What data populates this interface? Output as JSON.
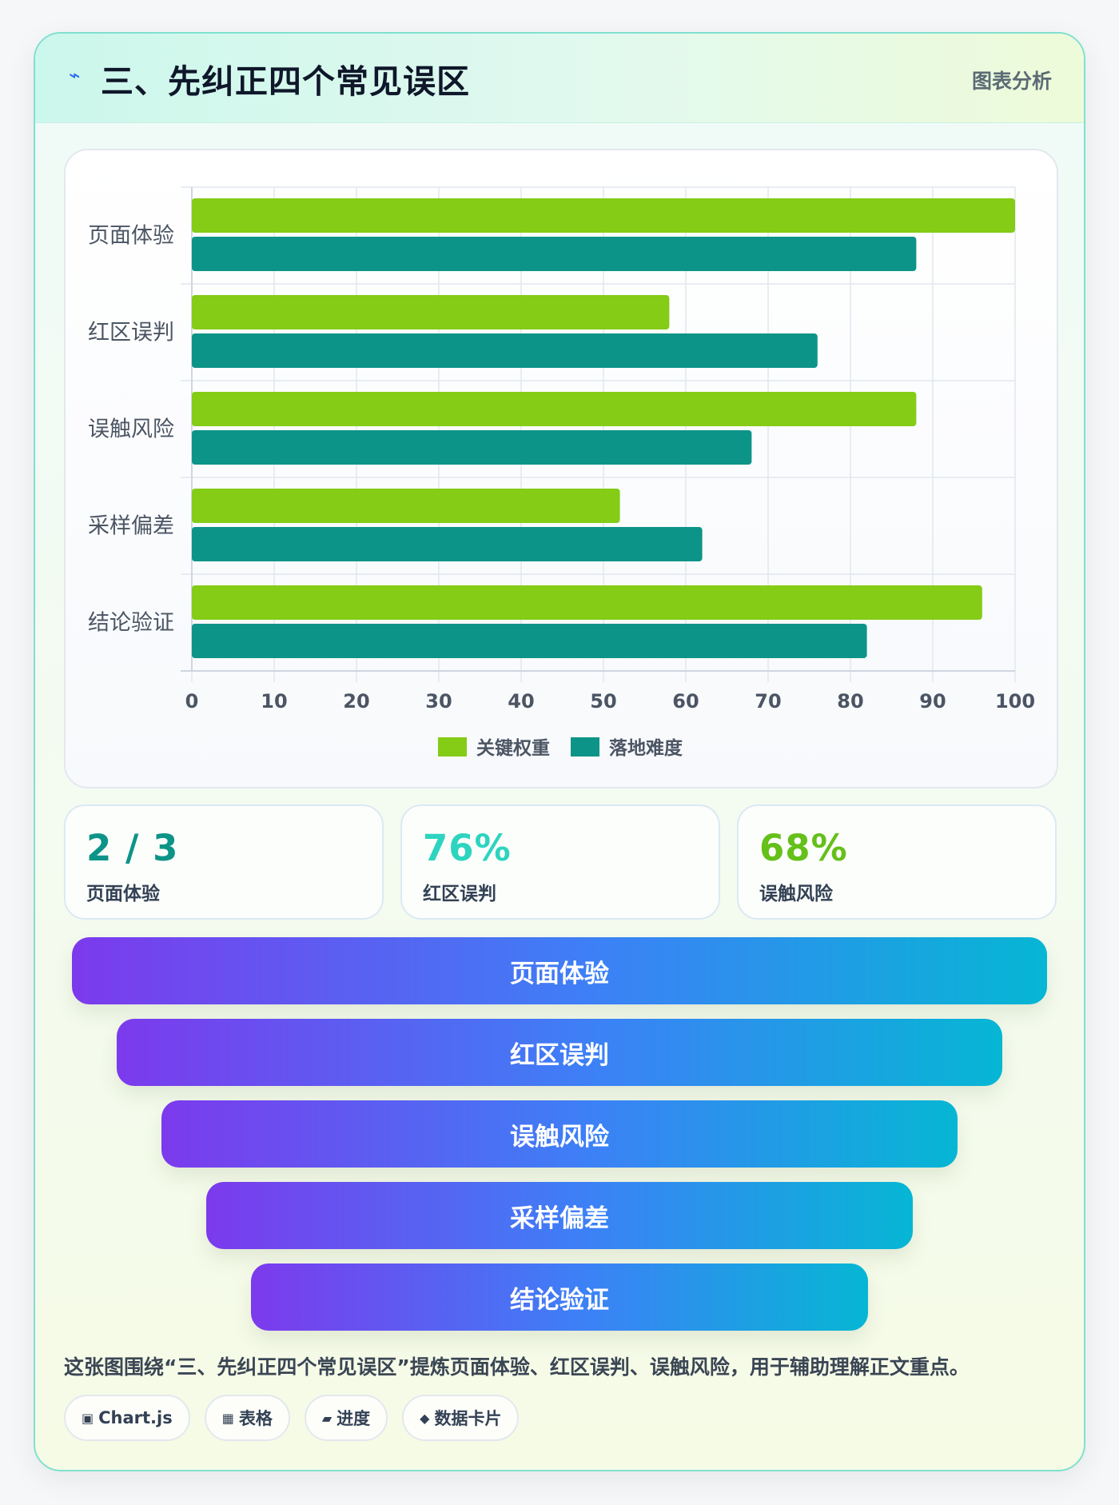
{
  "header": {
    "icon": "⌁",
    "icon_name": "lightning-icon",
    "title": "三、先纠正四个常见误区",
    "tag": "图表分析"
  },
  "chart_data": {
    "type": "bar",
    "orientation": "horizontal",
    "categories": [
      "页面体验",
      "红区误判",
      "误触风险",
      "采样偏差",
      "结论验证"
    ],
    "series": [
      {
        "name": "关键权重",
        "values": [
          100,
          58,
          88,
          52,
          96
        ],
        "color": "#84cc16"
      },
      {
        "name": "落地难度",
        "values": [
          88,
          76,
          68,
          62,
          82
        ],
        "color": "#0d9488"
      }
    ],
    "xlim": [
      0,
      100
    ],
    "xticks": [
      0,
      10,
      20,
      30,
      40,
      50,
      60,
      70,
      80,
      90,
      100
    ],
    "grid": true,
    "legend": "bottom"
  },
  "stats": [
    {
      "value": "2 / 3",
      "label": "页面体验",
      "color": "#0d9488"
    },
    {
      "value": "76%",
      "label": "红区误判",
      "color": "#2dd4bf"
    },
    {
      "value": "68%",
      "label": "误触风险",
      "color": "#65c01a"
    }
  ],
  "funnel": [
    "页面体验",
    "红区误判",
    "误触风险",
    "采样偏差",
    "结论验证"
  ],
  "caption": "这张图围绕“三、先纠正四个常见误区”提炼页面体验、红区误判、误触风险，用于辅助理解正文重点。",
  "pills": [
    {
      "icon": "▣",
      "icon_name": "chart-icon",
      "label": "Chart.js"
    },
    {
      "icon": "▦",
      "icon_name": "table-icon",
      "label": "表格"
    },
    {
      "icon": "▰",
      "icon_name": "progress-icon",
      "label": "进度"
    },
    {
      "icon": "◆",
      "icon_name": "card-icon",
      "label": "数据卡片"
    }
  ]
}
